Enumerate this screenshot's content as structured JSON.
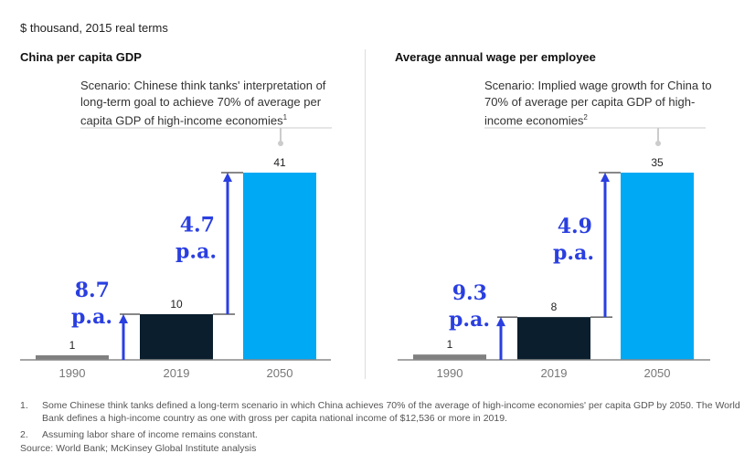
{
  "unit_label": "$ thousand, 2015 real terms",
  "chart_data": [
    {
      "type": "bar",
      "title": "China per capita GDP",
      "annotation": "Scenario: Chinese think tanks' interpretation of long-term goal to achieve 70% of average per capita GDP of high-income economies",
      "annotation_footnote": "1",
      "categories": [
        "1990",
        "2019",
        "2050"
      ],
      "values": [
        1,
        10,
        41
      ],
      "data_labels": [
        "1",
        "10",
        "41"
      ],
      "colors": [
        "#808080",
        "#0a1e2d",
        "#00a9f4"
      ],
      "growth_rates": [
        {
          "value": "8.7",
          "unit": "p.a."
        },
        {
          "value": "4.7",
          "unit": "p.a."
        }
      ],
      "arrow_color": "#2a3fe0"
    },
    {
      "type": "bar",
      "title": "Average annual wage per employee",
      "annotation": "Scenario: Implied wage growth for China to 70% of average per capita GDP of high-income economies",
      "annotation_footnote": "2",
      "categories": [
        "1990",
        "2019",
        "2050"
      ],
      "values": [
        1,
        8,
        35
      ],
      "data_labels": [
        "1",
        "8",
        "35"
      ],
      "colors": [
        "#808080",
        "#0a1e2d",
        "#00a9f4"
      ],
      "growth_rates": [
        {
          "value": "9.3",
          "unit": "p.a."
        },
        {
          "value": "4.9",
          "unit": "p.a."
        }
      ],
      "arrow_color": "#2a3fe0"
    }
  ],
  "footnotes": [
    {
      "num": "1.",
      "text": "Some Chinese think tanks defined a long-term scenario in which China achieves 70% of the average of high-income economies' per capita GDP by 2050. The World Bank defines a high-income country as one with gross per capita national income of $12,536 or more in 2019."
    },
    {
      "num": "2.",
      "text": "Assuming labor share of income remains constant."
    }
  ],
  "source": "Source: World Bank; McKinsey Global Institute analysis"
}
